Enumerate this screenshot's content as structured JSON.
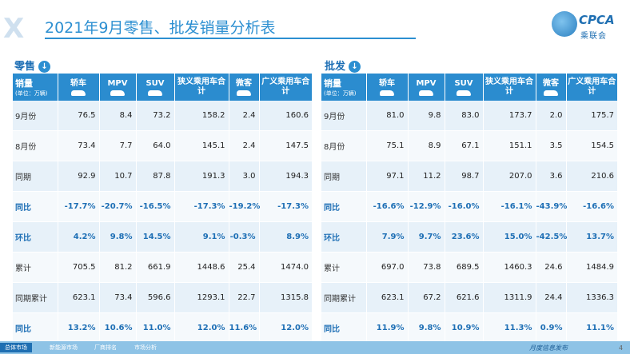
{
  "header": {
    "title": "2021年9月零售、批发销量分析表",
    "brand_logo": {
      "name": "CPCA",
      "sub": "乘联会"
    }
  },
  "columns": [
    "轿车",
    "MPV",
    "SUV",
    "狭义乘用车合计",
    "微客",
    "广义乘用车合计"
  ],
  "corner": {
    "main": "销量",
    "unit": "(单位：万辆)"
  },
  "retail": {
    "label": "零售",
    "rows": [
      {
        "label": "9月份",
        "values": [
          "76.5",
          "8.4",
          "73.2",
          "158.2",
          "2.4",
          "160.6"
        ]
      },
      {
        "label": "8月份",
        "values": [
          "73.4",
          "7.7",
          "64.0",
          "145.1",
          "2.4",
          "147.5"
        ]
      },
      {
        "label": "同期",
        "values": [
          "92.9",
          "10.7",
          "87.8",
          "191.3",
          "3.0",
          "194.3"
        ]
      },
      {
        "label": "同比",
        "values": [
          "-17.7%",
          "-20.7%",
          "-16.5%",
          "-17.3%",
          "-19.2%",
          "-17.3%"
        ]
      },
      {
        "label": "环比",
        "values": [
          "4.2%",
          "9.8%",
          "14.5%",
          "9.1%",
          "-0.3%",
          "8.9%"
        ]
      },
      {
        "label": "累计",
        "values": [
          "705.5",
          "81.2",
          "661.9",
          "1448.6",
          "25.4",
          "1474.0"
        ]
      },
      {
        "label": "同期累计",
        "values": [
          "623.1",
          "73.4",
          "596.6",
          "1293.1",
          "22.7",
          "1315.8"
        ]
      },
      {
        "label": "同比",
        "values": [
          "13.2%",
          "10.6%",
          "11.0%",
          "12.0%",
          "11.6%",
          "12.0%"
        ]
      }
    ]
  },
  "wholesale": {
    "label": "批发",
    "rows": [
      {
        "label": "9月份",
        "values": [
          "81.0",
          "9.8",
          "83.0",
          "173.7",
          "2.0",
          "175.7"
        ]
      },
      {
        "label": "8月份",
        "values": [
          "75.1",
          "8.9",
          "67.1",
          "151.1",
          "3.5",
          "154.5"
        ]
      },
      {
        "label": "同期",
        "values": [
          "97.1",
          "11.2",
          "98.7",
          "207.0",
          "3.6",
          "210.6"
        ]
      },
      {
        "label": "同比",
        "values": [
          "-16.6%",
          "-12.9%",
          "-16.0%",
          "-16.1%",
          "-43.9%",
          "-16.6%"
        ]
      },
      {
        "label": "环比",
        "values": [
          "7.9%",
          "9.7%",
          "23.6%",
          "15.0%",
          "-42.5%",
          "13.7%"
        ]
      },
      {
        "label": "累计",
        "values": [
          "697.0",
          "73.8",
          "689.5",
          "1460.3",
          "24.6",
          "1484.9"
        ]
      },
      {
        "label": "同期累计",
        "values": [
          "623.1",
          "67.2",
          "621.6",
          "1311.9",
          "24.4",
          "1336.3"
        ]
      },
      {
        "label": "同比",
        "values": [
          "11.9%",
          "9.8%",
          "10.9%",
          "11.3%",
          "0.9%",
          "11.1%"
        ]
      }
    ]
  },
  "footer": {
    "tabs": [
      "总体市场",
      "新能源市场",
      "厂商排名",
      "市场分析"
    ],
    "right_text": "月度信息发布",
    "page": "4"
  },
  "colors": {
    "header_blue": "#2b8ccf",
    "accent": "#1e6fb5",
    "row_light": "#e7f1f9"
  }
}
